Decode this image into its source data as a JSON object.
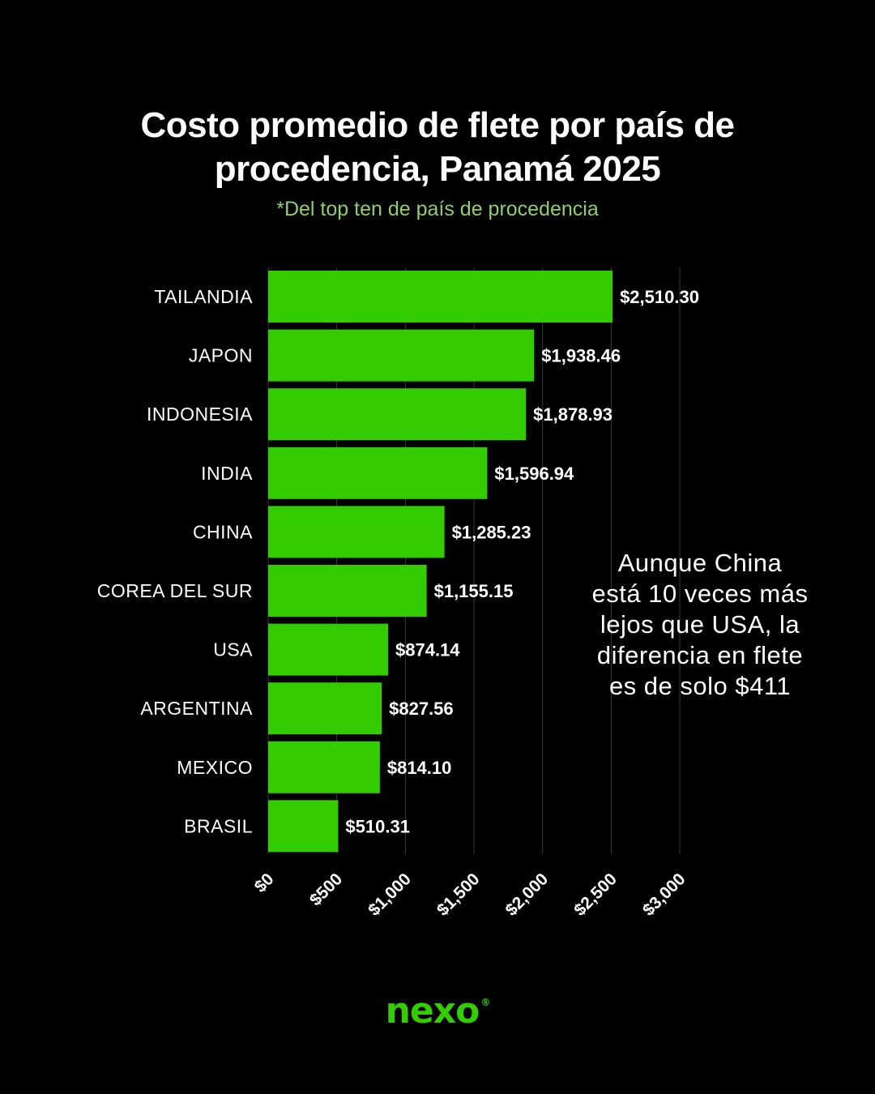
{
  "title_line1": "Costo promedio de flete por país de",
  "title_line2": "procedencia, Panamá 2025",
  "subtitle": "*Del top ten de país de procedencia",
  "annotation": "Aunque China está 10 veces más lejos que USA, la diferencia en flete es de solo $411",
  "logo_text": "nexo",
  "logo_mark": "®",
  "colors": {
    "bar": "#33cc00",
    "background": "#000000",
    "subtitle": "#8fcf6c",
    "grid": "#3a3a3a"
  },
  "chart_data": {
    "type": "bar",
    "orientation": "horizontal",
    "categories": [
      "TAILANDIA",
      "JAPON",
      "INDONESIA",
      "INDIA",
      "CHINA",
      "COREA DEL SUR",
      "USA",
      "ARGENTINA",
      "MEXICO",
      "BRASIL"
    ],
    "values": [
      2510.3,
      1938.46,
      1878.93,
      1596.94,
      1285.23,
      1155.15,
      874.14,
      827.56,
      814.1,
      510.31
    ],
    "value_labels": [
      "$2,510.30",
      "$1,938.46",
      "$1,878.93",
      "$1,596.94",
      "$1,285.23",
      "$1,155.15",
      "$874.14",
      "$827.56",
      "$814.10",
      "$510.31"
    ],
    "xlim": [
      0,
      3000
    ],
    "ticks": [
      0,
      500,
      1000,
      1500,
      2000,
      2500,
      3000
    ],
    "tick_labels": [
      "$0",
      "$500",
      "$1,000",
      "$1,500",
      "$2,000",
      "$2,500",
      "$3,000"
    ],
    "grid": true,
    "legend": "none"
  }
}
